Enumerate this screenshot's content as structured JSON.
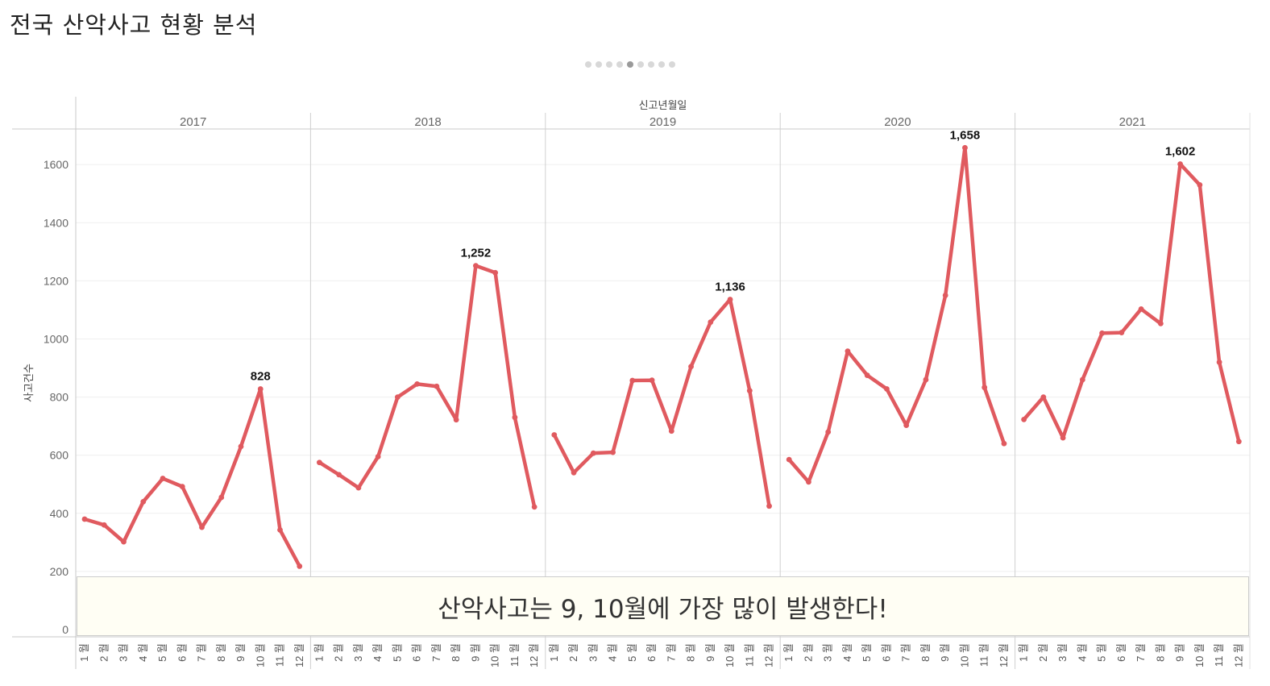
{
  "page": {
    "title": "전국 산악사고 현황 분석"
  },
  "pager": {
    "count": 9,
    "active_index": 4
  },
  "chart_data": {
    "type": "line",
    "title": "",
    "column_header": "신고년월일",
    "ylabel": "사고건수",
    "ylim": [
      0,
      1750
    ],
    "yticks": [
      0,
      200,
      400,
      600,
      800,
      1000,
      1200,
      1400,
      1600
    ],
    "month_unit": "월",
    "months": [
      "1",
      "2",
      "3",
      "4",
      "5",
      "6",
      "7",
      "8",
      "9",
      "10",
      "11",
      "12"
    ],
    "color": "#e05a5f",
    "series": [
      {
        "name": "2017",
        "values": [
          380,
          360,
          302,
          440,
          520,
          492,
          352,
          455,
          630,
          828,
          343,
          218
        ],
        "labels": {
          "9": "828"
        }
      },
      {
        "name": "2018",
        "values": [
          575,
          533,
          488,
          595,
          800,
          845,
          837,
          722,
          1252,
          1228,
          730,
          422
        ],
        "labels": {
          "8": "1,252"
        }
      },
      {
        "name": "2019",
        "values": [
          670,
          540,
          607,
          610,
          857,
          858,
          683,
          905,
          1058,
          1136,
          822,
          425
        ],
        "labels": {
          "9": "1,136"
        }
      },
      {
        "name": "2020",
        "values": [
          585,
          508,
          680,
          958,
          875,
          828,
          703,
          860,
          1150,
          1658,
          833,
          640
        ],
        "labels": {
          "9": "1,658"
        }
      },
      {
        "name": "2021",
        "values": [
          723,
          800,
          660,
          860,
          1020,
          1022,
          1103,
          1053,
          1602,
          1530,
          920,
          647
        ],
        "labels": {
          "8": "1,602"
        }
      }
    ]
  },
  "annotation": {
    "text": "산악사고는 9, 10월에 가장 많이 발생한다!"
  }
}
